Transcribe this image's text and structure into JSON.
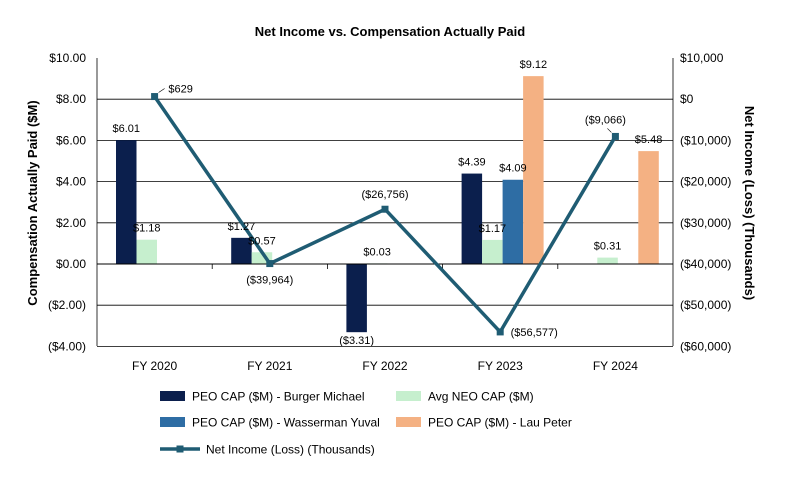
{
  "chart_data": {
    "type": "bar",
    "title": "Net Income vs. Compensation Actually Paid",
    "categories": [
      "FY 2020",
      "FY 2021",
      "FY 2022",
      "FY 2023",
      "FY 2024"
    ],
    "ylabel": "Compensation Actually Paid ($M)",
    "y2label": "Net Income (Loss) (Thousands)",
    "ylim": [
      -4,
      10
    ],
    "y2lim": [
      -60000,
      10000
    ],
    "yticks": [
      "$10.00",
      "$8.00",
      "$6.00",
      "$4.00",
      "$2.00",
      "$0.00",
      "($2.00)",
      "($4.00)"
    ],
    "y2ticks": [
      "$10,000",
      "$0",
      "($10,000)",
      "($20,000)",
      "($30,000)",
      "($40,000)",
      "($50,000)",
      "($60,000)"
    ],
    "gridlines": true,
    "series": [
      {
        "name": "PEO CAP ($M) - Burger Michael",
        "color": "#0b1f4d",
        "values": [
          6.01,
          1.27,
          -3.31,
          4.39,
          null
        ],
        "labels": [
          "$6.01",
          "$1.27",
          "($3.31)",
          "$4.39",
          ""
        ]
      },
      {
        "name": "Avg NEO CAP ($M)",
        "color": "#c6efce",
        "values": [
          1.18,
          0.57,
          0.03,
          1.17,
          0.31
        ],
        "labels": [
          "$1.18",
          "$0.57",
          "$0.03",
          "$1.17",
          "$0.31"
        ]
      },
      {
        "name": "PEO CAP ($M) - Wasserman Yuval",
        "color": "#2e6da4",
        "values": [
          null,
          null,
          null,
          4.09,
          null
        ],
        "labels": [
          "",
          "",
          "",
          "$4.09",
          ""
        ]
      },
      {
        "name": "PEO CAP ($M) - Lau Peter",
        "color": "#f4b183",
        "values": [
          null,
          null,
          null,
          9.12,
          5.48
        ],
        "labels": [
          "",
          "",
          "",
          "$9.12",
          "$5.48"
        ]
      }
    ],
    "line_series": {
      "name": "Net Income (Loss) (Thousands)",
      "color": "#1f5c73",
      "values": [
        629,
        -39964,
        -26756,
        -56577,
        -9066
      ],
      "labels": [
        "$629",
        "($39,964)",
        "($26,756)",
        "($56,577)",
        "($9,066)"
      ]
    }
  }
}
